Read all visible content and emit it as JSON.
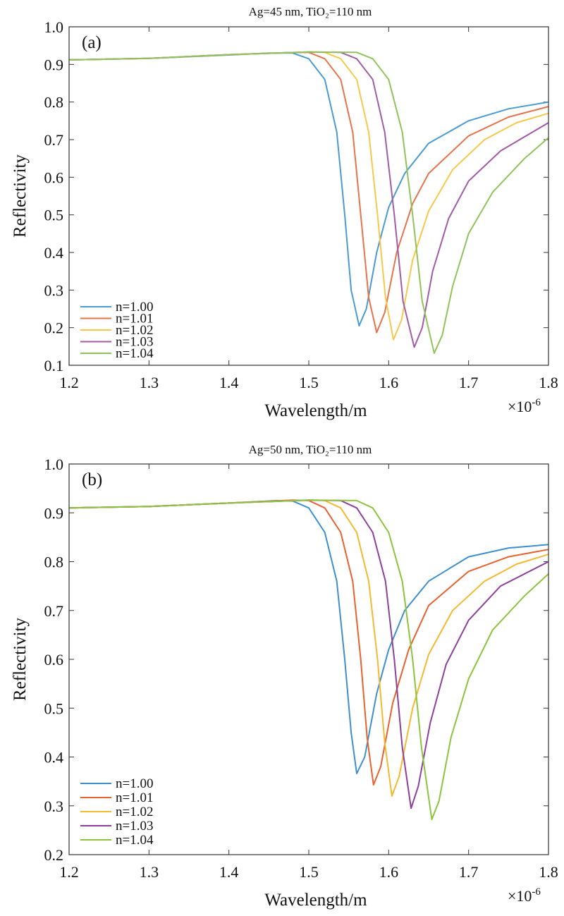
{
  "chart_data": [
    {
      "type": "line",
      "panel_label": "(a)",
      "title": "Ag=45 nm, TiO₂=110 nm",
      "xlabel": "Wavelength/m",
      "ylabel": "Reflectivity",
      "x_multiplier": "×10",
      "x_multiplier_exp": "-6",
      "xlim": [
        1.2,
        1.8
      ],
      "ylim": [
        0.1,
        1.0
      ],
      "xticks": [
        "1.2",
        "1.3",
        "1.4",
        "1.5",
        "1.6",
        "1.7",
        "1.8"
      ],
      "yticks": [
        "0.1",
        "0.2",
        "0.3",
        "0.4",
        "0.5",
        "0.6",
        "0.7",
        "0.8",
        "0.9",
        "1.0"
      ],
      "legend_position": "lower-left",
      "grid": false,
      "series": [
        {
          "name": "n=1.00",
          "color": "#4a9ad4",
          "points": [
            [
              1.2,
              0.912
            ],
            [
              1.3,
              0.916
            ],
            [
              1.4,
              0.925
            ],
            [
              1.45,
              0.93
            ],
            [
              1.48,
              0.93
            ],
            [
              1.5,
              0.915
            ],
            [
              1.52,
              0.86
            ],
            [
              1.535,
              0.72
            ],
            [
              1.545,
              0.5
            ],
            [
              1.553,
              0.3
            ],
            [
              1.563,
              0.205
            ],
            [
              1.572,
              0.25
            ],
            [
              1.585,
              0.4
            ],
            [
              1.6,
              0.52
            ],
            [
              1.62,
              0.61
            ],
            [
              1.65,
              0.69
            ],
            [
              1.7,
              0.75
            ],
            [
              1.75,
              0.782
            ],
            [
              1.8,
              0.8
            ]
          ]
        },
        {
          "name": "n=1.01",
          "color": "#e8734a",
          "points": [
            [
              1.2,
              0.912
            ],
            [
              1.3,
              0.916
            ],
            [
              1.4,
              0.926
            ],
            [
              1.47,
              0.931
            ],
            [
              1.5,
              0.932
            ],
            [
              1.52,
              0.915
            ],
            [
              1.54,
              0.86
            ],
            [
              1.555,
              0.72
            ],
            [
              1.565,
              0.5
            ],
            [
              1.575,
              0.28
            ],
            [
              1.585,
              0.187
            ],
            [
              1.595,
              0.24
            ],
            [
              1.61,
              0.4
            ],
            [
              1.63,
              0.53
            ],
            [
              1.65,
              0.61
            ],
            [
              1.7,
              0.71
            ],
            [
              1.75,
              0.76
            ],
            [
              1.8,
              0.788
            ]
          ]
        },
        {
          "name": "n=1.02",
          "color": "#f7c84a",
          "points": [
            [
              1.2,
              0.912
            ],
            [
              1.3,
              0.916
            ],
            [
              1.4,
              0.926
            ],
            [
              1.5,
              0.933
            ],
            [
              1.52,
              0.932
            ],
            [
              1.54,
              0.915
            ],
            [
              1.56,
              0.86
            ],
            [
              1.575,
              0.72
            ],
            [
              1.586,
              0.5
            ],
            [
              1.596,
              0.28
            ],
            [
              1.606,
              0.168
            ],
            [
              1.616,
              0.22
            ],
            [
              1.63,
              0.38
            ],
            [
              1.65,
              0.51
            ],
            [
              1.68,
              0.62
            ],
            [
              1.72,
              0.7
            ],
            [
              1.76,
              0.745
            ],
            [
              1.8,
              0.77
            ]
          ]
        },
        {
          "name": "n=1.03",
          "color": "#a25ba6",
          "points": [
            [
              1.2,
              0.912
            ],
            [
              1.3,
              0.916
            ],
            [
              1.4,
              0.926
            ],
            [
              1.5,
              0.933
            ],
            [
              1.54,
              0.932
            ],
            [
              1.56,
              0.915
            ],
            [
              1.58,
              0.86
            ],
            [
              1.595,
              0.72
            ],
            [
              1.607,
              0.5
            ],
            [
              1.618,
              0.27
            ],
            [
              1.632,
              0.148
            ],
            [
              1.642,
              0.2
            ],
            [
              1.655,
              0.35
            ],
            [
              1.675,
              0.49
            ],
            [
              1.7,
              0.59
            ],
            [
              1.74,
              0.67
            ],
            [
              1.8,
              0.745
            ]
          ]
        },
        {
          "name": "n=1.04",
          "color": "#90c45a",
          "points": [
            [
              1.2,
              0.912
            ],
            [
              1.3,
              0.916
            ],
            [
              1.4,
              0.926
            ],
            [
              1.5,
              0.933
            ],
            [
              1.56,
              0.932
            ],
            [
              1.58,
              0.915
            ],
            [
              1.6,
              0.86
            ],
            [
              1.617,
              0.72
            ],
            [
              1.63,
              0.5
            ],
            [
              1.642,
              0.27
            ],
            [
              1.657,
              0.132
            ],
            [
              1.667,
              0.18
            ],
            [
              1.68,
              0.31
            ],
            [
              1.7,
              0.45
            ],
            [
              1.73,
              0.56
            ],
            [
              1.77,
              0.65
            ],
            [
              1.8,
              0.705
            ]
          ]
        }
      ]
    },
    {
      "type": "line",
      "panel_label": "(b)",
      "title": "Ag=50 nm, TiO₂=110 nm",
      "xlabel": "Wavelength/m",
      "ylabel": "Reflectivity",
      "x_multiplier": "×10",
      "x_multiplier_exp": "-6",
      "xlim": [
        1.2,
        1.8
      ],
      "ylim": [
        0.2,
        1.0
      ],
      "xticks": [
        "1.2",
        "1.3",
        "1.4",
        "1.5",
        "1.6",
        "1.7",
        "1.8"
      ],
      "yticks": [
        "0.2",
        "0.3",
        "0.4",
        "0.5",
        "0.6",
        "0.7",
        "0.8",
        "0.9",
        "1.0"
      ],
      "legend_position": "lower-left",
      "grid": false,
      "series": [
        {
          "name": "n=1.00",
          "color": "#3d8fd0",
          "points": [
            [
              1.2,
              0.91
            ],
            [
              1.3,
              0.913
            ],
            [
              1.4,
              0.92
            ],
            [
              1.46,
              0.925
            ],
            [
              1.48,
              0.924
            ],
            [
              1.5,
              0.91
            ],
            [
              1.52,
              0.86
            ],
            [
              1.535,
              0.76
            ],
            [
              1.545,
              0.6
            ],
            [
              1.553,
              0.45
            ],
            [
              1.56,
              0.366
            ],
            [
              1.57,
              0.4
            ],
            [
              1.585,
              0.53
            ],
            [
              1.6,
              0.62
            ],
            [
              1.62,
              0.7
            ],
            [
              1.65,
              0.76
            ],
            [
              1.7,
              0.81
            ],
            [
              1.75,
              0.828
            ],
            [
              1.8,
              0.835
            ]
          ]
        },
        {
          "name": "n=1.01",
          "color": "#e8622f",
          "points": [
            [
              1.2,
              0.91
            ],
            [
              1.3,
              0.913
            ],
            [
              1.4,
              0.92
            ],
            [
              1.48,
              0.926
            ],
            [
              1.5,
              0.925
            ],
            [
              1.52,
              0.91
            ],
            [
              1.54,
              0.86
            ],
            [
              1.555,
              0.76
            ],
            [
              1.565,
              0.6
            ],
            [
              1.573,
              0.44
            ],
            [
              1.581,
              0.343
            ],
            [
              1.59,
              0.38
            ],
            [
              1.605,
              0.51
            ],
            [
              1.625,
              0.62
            ],
            [
              1.65,
              0.71
            ],
            [
              1.7,
              0.78
            ],
            [
              1.75,
              0.81
            ],
            [
              1.8,
              0.825
            ]
          ]
        },
        {
          "name": "n=1.02",
          "color": "#f5b82e",
          "points": [
            [
              1.2,
              0.91
            ],
            [
              1.3,
              0.913
            ],
            [
              1.4,
              0.92
            ],
            [
              1.5,
              0.926
            ],
            [
              1.52,
              0.925
            ],
            [
              1.54,
              0.91
            ],
            [
              1.56,
              0.86
            ],
            [
              1.575,
              0.76
            ],
            [
              1.586,
              0.6
            ],
            [
              1.595,
              0.43
            ],
            [
              1.604,
              0.32
            ],
            [
              1.613,
              0.36
            ],
            [
              1.63,
              0.5
            ],
            [
              1.65,
              0.61
            ],
            [
              1.68,
              0.7
            ],
            [
              1.72,
              0.76
            ],
            [
              1.76,
              0.795
            ],
            [
              1.8,
              0.815
            ]
          ]
        },
        {
          "name": "n=1.03",
          "color": "#8e3f9c",
          "points": [
            [
              1.2,
              0.91
            ],
            [
              1.3,
              0.913
            ],
            [
              1.4,
              0.92
            ],
            [
              1.5,
              0.926
            ],
            [
              1.54,
              0.925
            ],
            [
              1.56,
              0.91
            ],
            [
              1.58,
              0.86
            ],
            [
              1.596,
              0.76
            ],
            [
              1.607,
              0.6
            ],
            [
              1.617,
              0.42
            ],
            [
              1.628,
              0.295
            ],
            [
              1.637,
              0.34
            ],
            [
              1.652,
              0.47
            ],
            [
              1.672,
              0.59
            ],
            [
              1.7,
              0.68
            ],
            [
              1.74,
              0.75
            ],
            [
              1.8,
              0.8
            ]
          ]
        },
        {
          "name": "n=1.04",
          "color": "#8cc43c",
          "points": [
            [
              1.2,
              0.91
            ],
            [
              1.3,
              0.913
            ],
            [
              1.4,
              0.92
            ],
            [
              1.5,
              0.926
            ],
            [
              1.56,
              0.925
            ],
            [
              1.58,
              0.91
            ],
            [
              1.6,
              0.86
            ],
            [
              1.617,
              0.76
            ],
            [
              1.63,
              0.6
            ],
            [
              1.641,
              0.42
            ],
            [
              1.654,
              0.272
            ],
            [
              1.663,
              0.31
            ],
            [
              1.678,
              0.44
            ],
            [
              1.7,
              0.56
            ],
            [
              1.73,
              0.66
            ],
            [
              1.77,
              0.73
            ],
            [
              1.8,
              0.775
            ]
          ]
        }
      ]
    }
  ]
}
